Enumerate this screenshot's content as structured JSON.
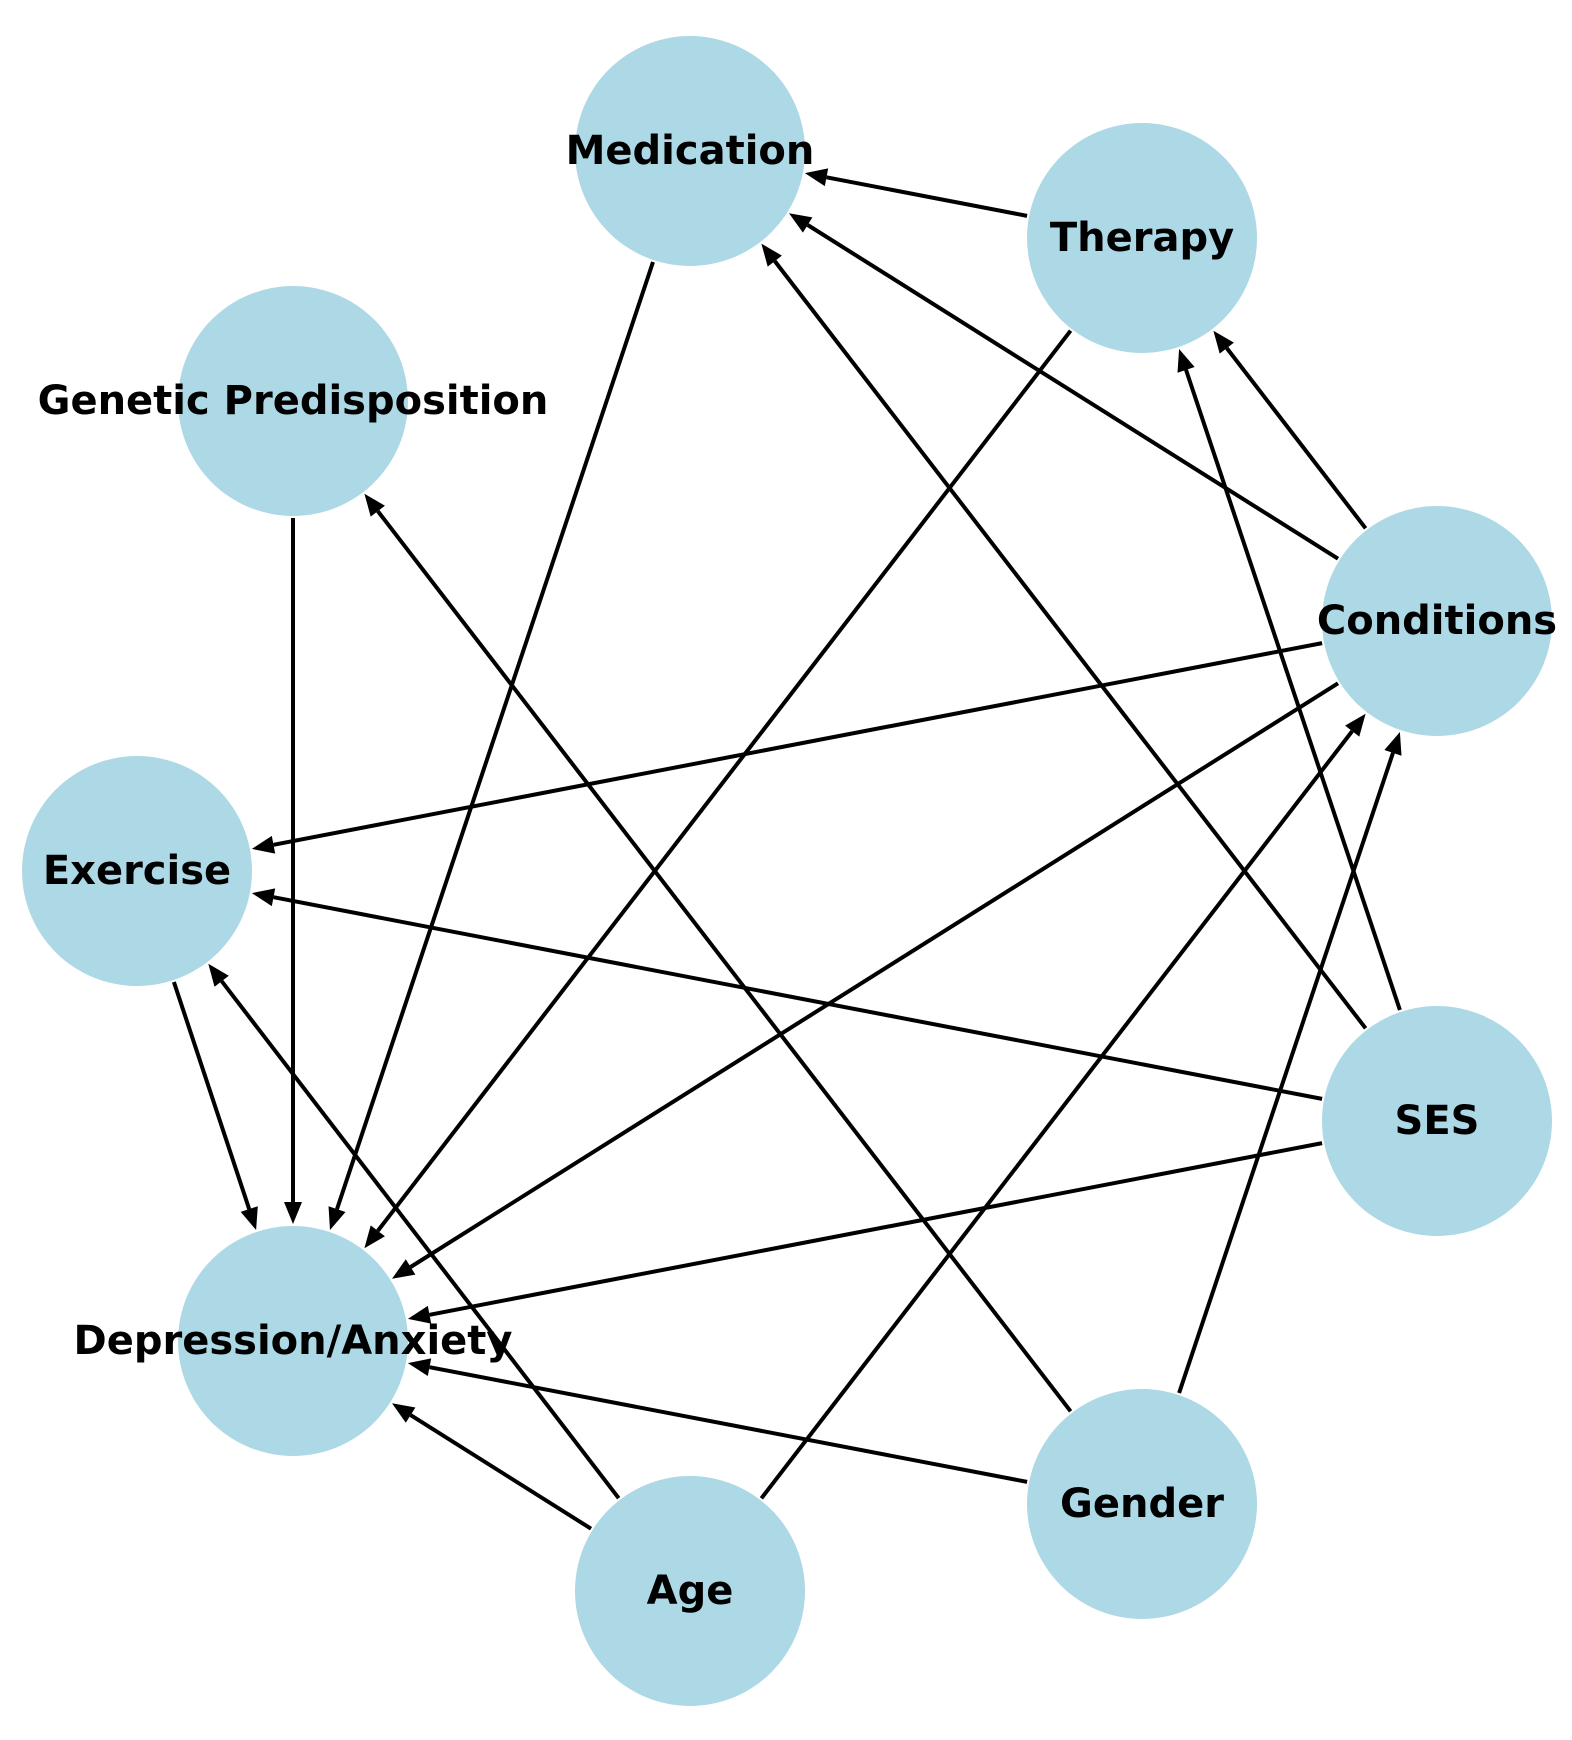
{
  "diagram": {
    "type": "directed-graph",
    "node_color": "#add8e6",
    "edge_color": "#000000",
    "nodes": [
      {
        "id": "medication",
        "label": "Medication"
      },
      {
        "id": "therapy",
        "label": "Therapy"
      },
      {
        "id": "genetic",
        "label": "Genetic Predisposition"
      },
      {
        "id": "conditions",
        "label": "Conditions"
      },
      {
        "id": "exercise",
        "label": "Exercise"
      },
      {
        "id": "ses",
        "label": "SES"
      },
      {
        "id": "depression",
        "label": "Depression/Anxiety"
      },
      {
        "id": "gender",
        "label": "Gender"
      },
      {
        "id": "age",
        "label": "Age"
      }
    ],
    "edges": [
      {
        "from": "therapy",
        "to": "medication"
      },
      {
        "from": "conditions",
        "to": "medication"
      },
      {
        "from": "ses",
        "to": "medication"
      },
      {
        "from": "medication",
        "to": "depression"
      },
      {
        "from": "therapy",
        "to": "depression"
      },
      {
        "from": "conditions",
        "to": "therapy"
      },
      {
        "from": "ses",
        "to": "therapy"
      },
      {
        "from": "gender",
        "to": "genetic"
      },
      {
        "from": "genetic",
        "to": "depression"
      },
      {
        "from": "conditions",
        "to": "exercise"
      },
      {
        "from": "conditions",
        "to": "depression"
      },
      {
        "from": "age",
        "to": "conditions"
      },
      {
        "from": "gender",
        "to": "conditions"
      },
      {
        "from": "ses",
        "to": "exercise"
      },
      {
        "from": "age",
        "to": "exercise"
      },
      {
        "from": "exercise",
        "to": "depression"
      },
      {
        "from": "ses",
        "to": "depression"
      },
      {
        "from": "gender",
        "to": "depression"
      },
      {
        "from": "age",
        "to": "depression"
      }
    ]
  }
}
